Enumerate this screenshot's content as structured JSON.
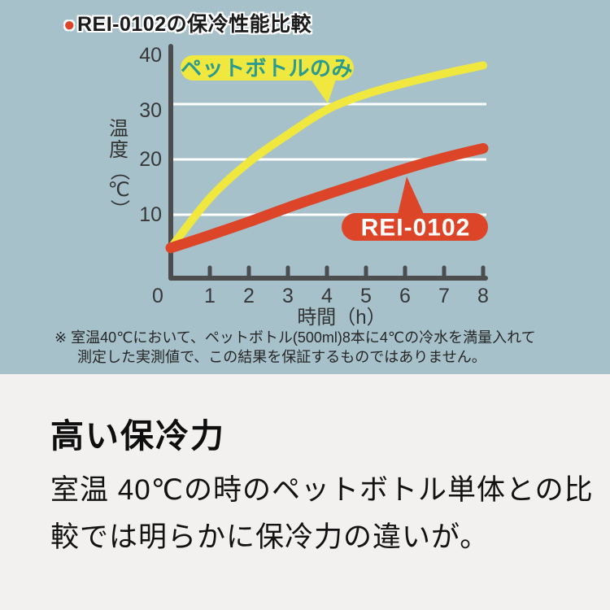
{
  "header": {
    "bullet": "●",
    "title": "REI-0102の保冷性能比較"
  },
  "chart_data": {
    "type": "line",
    "title": "REI-0102の保冷性能比較",
    "x": [
      0,
      1,
      2,
      3,
      4,
      5,
      6,
      7,
      8
    ],
    "series": [
      {
        "name": "ペットボトルのみ",
        "color": "#f0e83e",
        "values": [
          4,
          13,
          19.5,
          24.5,
          29,
          31.8,
          33.8,
          35.5,
          37
        ]
      },
      {
        "name": "REI-0102",
        "color": "#dc4527",
        "values": [
          4,
          6.3,
          8.7,
          11.3,
          13.7,
          16,
          18.3,
          20.3,
          22
        ]
      }
    ],
    "xlabel": "時間（h）",
    "ylabel": "温度（℃）",
    "xlim": [
      0,
      8
    ],
    "ylim": [
      0,
      40
    ],
    "xticks": [
      "0",
      "1",
      "2",
      "3",
      "4",
      "5",
      "6",
      "7",
      "8"
    ],
    "yticks": [
      "10",
      "20",
      "30",
      "40"
    ],
    "grid": "horizontal-white-lines",
    "gridlines_at": [
      10,
      20,
      30
    ],
    "legend_position": "inline-callout-bubbles"
  },
  "notes": {
    "line1": "※ 室温40℃において、ペットボトル(500ml)8本に4℃の冷水を満量入れて",
    "line2": "測定した実測値で、この結果を保証するものではありません。"
  },
  "section": {
    "heading": "高い保冷力",
    "body_line1": "室温 40℃の時のペットボトル単体との比",
    "body_line2": "較では明らかに保冷力の違いが。"
  },
  "palette": {
    "chart_bg": "#a7c1cb",
    "section_bg": "#f2f1ef",
    "yellow": "#f0e83e",
    "red": "#dc4527",
    "teal_text": "#2a9b8e",
    "axis": "#4d4d4d",
    "grid": "#ffffff",
    "ink": "#1a1a1a"
  }
}
